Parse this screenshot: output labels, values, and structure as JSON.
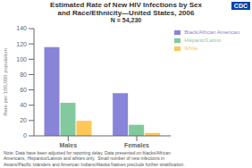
{
  "chart_data": {
    "type": "bar",
    "title": "Estimated Rate of New HIV Infections by Sex\nand Race/Ethnicity—United States, 2006",
    "subtitle": "N = 54,230",
    "categories": [
      "Males",
      "Females"
    ],
    "series": [
      {
        "name": "Black/African American",
        "color": "#8884d8",
        "values": [
          115.7,
          55.7
        ]
      },
      {
        "name": "Hispanic/Latino",
        "color": "#82ca9d",
        "values": [
          43.1,
          14.4
        ]
      },
      {
        "name": "White",
        "color": "#ffc658",
        "values": [
          19.6,
          3.8
        ]
      }
    ],
    "ylabel": "Rate per 100,000 population",
    "ylim": [
      0,
      140
    ],
    "yticks": [
      0,
      20,
      40,
      60,
      80,
      100,
      120,
      140
    ],
    "grid": false,
    "legend": "upper right",
    "annotations": [
      "Note: Data have been adjusted for reporting delay. Data presented on blacks/African\nAmericans, Hispanics/Latinos and whites only.  Small number of new infections in\nAsians/Pacific Islanders and American Indians/Alaska Natives preclude further stratification.",
      "CDC"
    ]
  }
}
